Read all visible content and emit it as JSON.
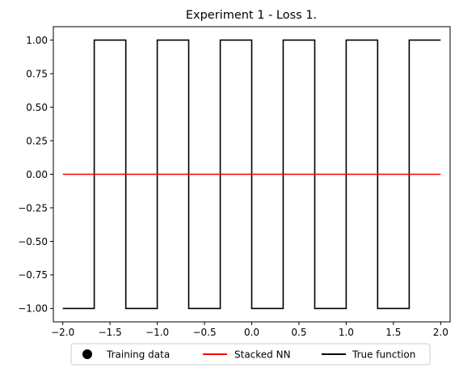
{
  "chart_data": {
    "type": "line",
    "title": "Experiment 1 - Loss 1.",
    "xlabel": "",
    "ylabel": "",
    "xlim": [
      -2.1,
      2.1
    ],
    "ylim": [
      -1.1,
      1.1
    ],
    "x_ticks": [
      -2.0,
      -1.5,
      -1.0,
      -0.5,
      0.0,
      0.5,
      1.0,
      1.5,
      2.0
    ],
    "x_tick_labels": [
      "−2.0",
      "−1.5",
      "−1.0",
      "−0.5",
      "0.0",
      "0.5",
      "1.0",
      "1.5",
      "2.0"
    ],
    "y_ticks": [
      -1.0,
      -0.75,
      -0.5,
      -0.25,
      0.0,
      0.25,
      0.5,
      0.75,
      1.0
    ],
    "y_tick_labels": [
      "−1.00",
      "−0.75",
      "−0.50",
      "−0.25",
      "0.00",
      "0.25",
      "0.50",
      "0.75",
      "1.00"
    ],
    "grid": false,
    "legend_position": "bottom-center",
    "series": [
      {
        "name": "Training data",
        "style": "markers",
        "color": "#000000",
        "x": [],
        "y": []
      },
      {
        "name": "Stacked NN",
        "style": "line",
        "color": "#ff0000",
        "x": [
          -2.0,
          2.0
        ],
        "y": [
          0.0,
          0.0
        ]
      },
      {
        "name": "True function",
        "style": "line",
        "color": "#000000",
        "x": [
          -2.0,
          -1.667,
          -1.667,
          -1.333,
          -1.333,
          -1.0,
          -1.0,
          -0.667,
          -0.667,
          -0.333,
          -0.333,
          0.0,
          0.0,
          0.333,
          0.333,
          0.667,
          0.667,
          1.0,
          1.0,
          1.333,
          1.333,
          1.667,
          1.667,
          2.0
        ],
        "y": [
          -1,
          -1,
          1,
          1,
          -1,
          -1,
          1,
          1,
          -1,
          -1,
          1,
          1,
          -1,
          -1,
          1,
          1,
          -1,
          -1,
          1,
          1,
          -1,
          -1,
          1,
          1
        ]
      }
    ]
  }
}
